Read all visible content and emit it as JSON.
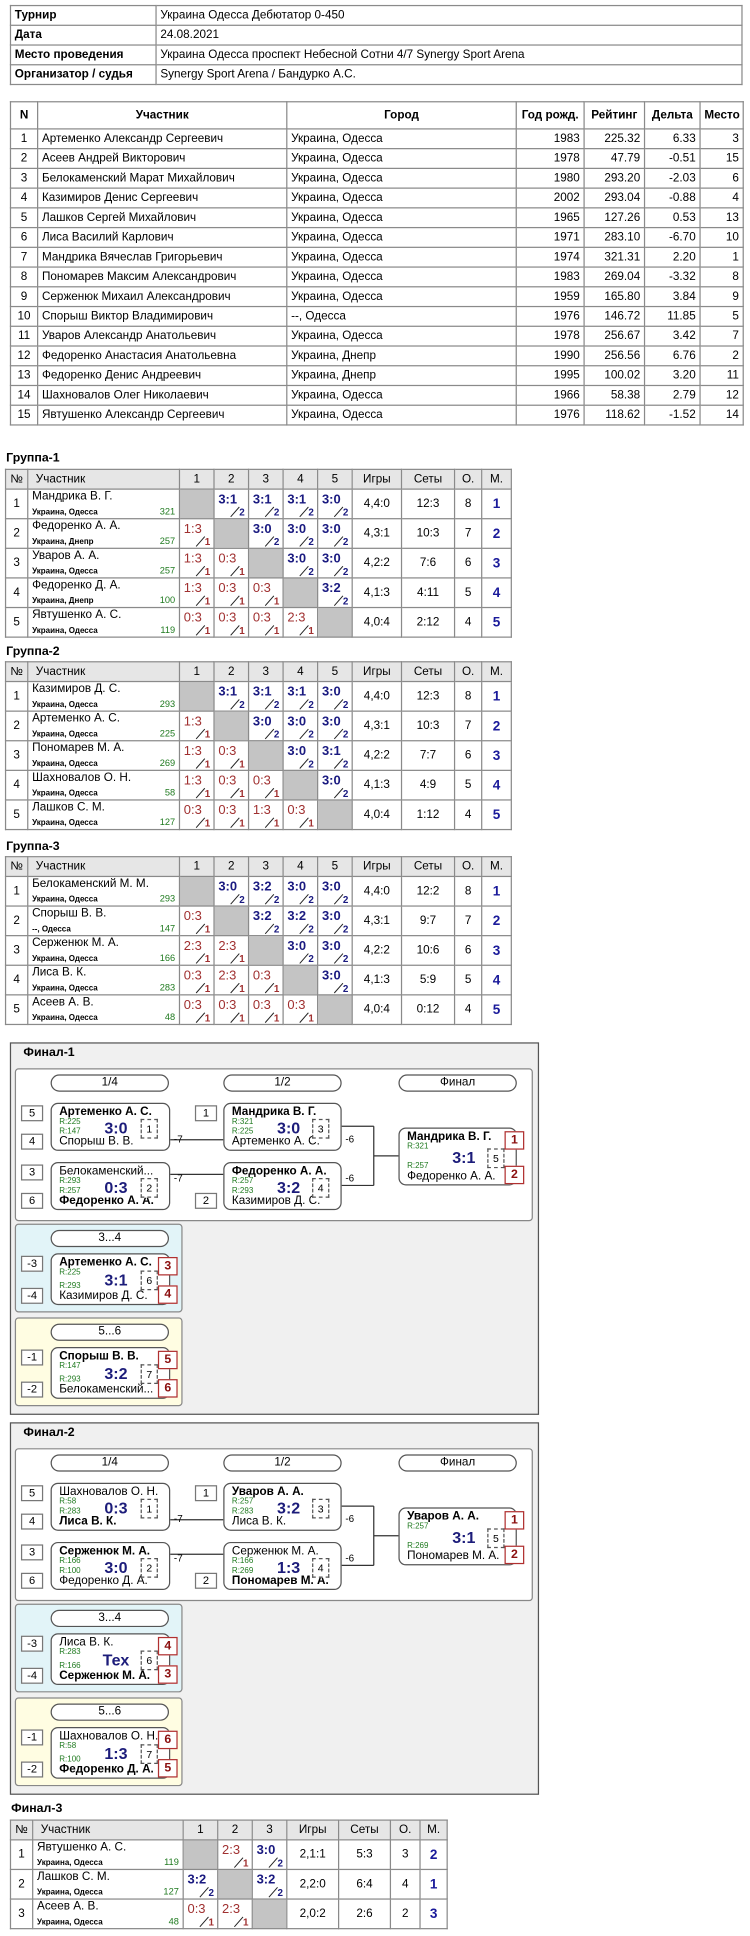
{
  "info": [
    [
      "Турнир",
      "Украина Одесса Дебютатор 0-450"
    ],
    [
      "Дата",
      "24.08.2021"
    ],
    [
      "Место проведения",
      "Украина Одесса проспект Небесной Сотни 4/7 Synergy Sport Arena"
    ],
    [
      "Организатор / судья",
      "Synergy Sport Arena / Бандурко А.С."
    ]
  ],
  "players": {
    "header": [
      "N",
      "Участник",
      "Город",
      "Год рожд.",
      "Рейтинг",
      "Дельта",
      "Место"
    ],
    "rows": [
      [
        "1",
        "Артеменко Александр Сергеевич",
        "Украина, Одесса",
        "1983",
        "225.32",
        "6.33",
        "3"
      ],
      [
        "2",
        "Асеев Андрей Викторович",
        "Украина, Одесса",
        "1978",
        "47.79",
        "-0.51",
        "15"
      ],
      [
        "3",
        "Белокаменский Марат Михайлович",
        "Украина, Одесса",
        "1980",
        "293.20",
        "-2.03",
        "6"
      ],
      [
        "4",
        "Казимиров Денис Сергеевич",
        "Украина, Одесса",
        "2002",
        "293.04",
        "-0.88",
        "4"
      ],
      [
        "5",
        "Лашков Сергей Михайлович",
        "Украина, Одесса",
        "1965",
        "127.26",
        "0.53",
        "13"
      ],
      [
        "6",
        "Лиса Василий Карлович",
        "Украина, Одесса",
        "1971",
        "283.10",
        "-6.70",
        "10"
      ],
      [
        "7",
        "Мандрика Вячеслав Григорьевич",
        "Украина, Одесса",
        "1974",
        "321.31",
        "2.20",
        "1"
      ],
      [
        "8",
        "Пономарев Максим Александрович",
        "Украина, Одесса",
        "1983",
        "269.04",
        "-3.32",
        "8"
      ],
      [
        "9",
        "Серженюк Михаил Александрович",
        "Украина, Одесса",
        "1959",
        "165.80",
        "3.84",
        "9"
      ],
      [
        "10",
        "Спорыш Виктор Владимирович",
        "--, Одесса",
        "1976",
        "146.72",
        "11.85",
        "5"
      ],
      [
        "11",
        "Уваров Александр Анатольевич",
        "Украина, Одесса",
        "1978",
        "256.67",
        "3.42",
        "7"
      ],
      [
        "12",
        "Федоренко Анастасия Анатольевна",
        "Украина, Днепр",
        "1990",
        "256.56",
        "6.76",
        "2"
      ],
      [
        "13",
        "Федоренко Денис Андреевич",
        "Украина, Днепр",
        "1995",
        "100.02",
        "3.20",
        "11"
      ],
      [
        "14",
        "Шахновалов Олег Николаевич",
        "Украина, Одесса",
        "1966",
        "58.38",
        "2.79",
        "12"
      ],
      [
        "15",
        "Явтушенко Александр Сергеевич",
        "Украина, Одесса",
        "1976",
        "118.62",
        "-1.52",
        "14"
      ]
    ]
  },
  "groups": [
    {
      "title": "Группа-1",
      "header": [
        "№",
        "Участник",
        "1",
        "2",
        "3",
        "4",
        "5",
        "Игры",
        "Сеты",
        "О.",
        "М."
      ],
      "rows": [
        {
          "n": "1",
          "name": "Мандрика В. Г.",
          "city": "Украина, Одесса",
          "rating": "321",
          "results": [
            null,
            {
              "s": "3:1",
              "p": "2"
            },
            {
              "s": "3:1",
              "p": "2"
            },
            {
              "s": "3:1",
              "p": "2"
            },
            {
              "s": "3:0",
              "p": "2"
            }
          ],
          "games": "4,4:0",
          "sets": "12:3",
          "points": "8",
          "place": "1"
        },
        {
          "n": "2",
          "name": "Федоренко А. А.",
          "city": "Украина, Днепр",
          "rating": "257",
          "results": [
            {
              "s": "1:3",
              "p": "1"
            },
            null,
            {
              "s": "3:0",
              "p": "2"
            },
            {
              "s": "3:0",
              "p": "2"
            },
            {
              "s": "3:0",
              "p": "2"
            }
          ],
          "games": "4,3:1",
          "sets": "10:3",
          "points": "7",
          "place": "2"
        },
        {
          "n": "3",
          "name": "Уваров А. А.",
          "city": "Украина, Одесса",
          "rating": "257",
          "results": [
            {
              "s": "1:3",
              "p": "1"
            },
            {
              "s": "0:3",
              "p": "1"
            },
            null,
            {
              "s": "3:0",
              "p": "2"
            },
            {
              "s": "3:0",
              "p": "2"
            }
          ],
          "games": "4,2:2",
          "sets": "7:6",
          "points": "6",
          "place": "3"
        },
        {
          "n": "4",
          "name": "Федоренко Д. А.",
          "city": "Украина, Днепр",
          "rating": "100",
          "results": [
            {
              "s": "1:3",
              "p": "1"
            },
            {
              "s": "0:3",
              "p": "1"
            },
            {
              "s": "0:3",
              "p": "1"
            },
            null,
            {
              "s": "3:2",
              "p": "2"
            }
          ],
          "games": "4,1:3",
          "sets": "4:11",
          "points": "5",
          "place": "4"
        },
        {
          "n": "5",
          "name": "Явтушенко А. С.",
          "city": "Украина, Одесса",
          "rating": "119",
          "results": [
            {
              "s": "0:3",
              "p": "1"
            },
            {
              "s": "0:3",
              "p": "1"
            },
            {
              "s": "0:3",
              "p": "1"
            },
            {
              "s": "2:3",
              "p": "1"
            },
            null
          ],
          "games": "4,0:4",
          "sets": "2:12",
          "points": "4",
          "place": "5"
        }
      ]
    },
    {
      "title": "Группа-2",
      "header": [
        "№",
        "Участник",
        "1",
        "2",
        "3",
        "4",
        "5",
        "Игры",
        "Сеты",
        "О.",
        "М."
      ],
      "rows": [
        {
          "n": "1",
          "name": "Казимиров Д. С.",
          "city": "Украина, Одесса",
          "rating": "293",
          "results": [
            null,
            {
              "s": "3:1",
              "p": "2"
            },
            {
              "s": "3:1",
              "p": "2"
            },
            {
              "s": "3:1",
              "p": "2"
            },
            {
              "s": "3:0",
              "p": "2"
            }
          ],
          "games": "4,4:0",
          "sets": "12:3",
          "points": "8",
          "place": "1"
        },
        {
          "n": "2",
          "name": "Артеменко А. С.",
          "city": "Украина, Одесса",
          "rating": "225",
          "results": [
            {
              "s": "1:3",
              "p": "1"
            },
            null,
            {
              "s": "3:0",
              "p": "2"
            },
            {
              "s": "3:0",
              "p": "2"
            },
            {
              "s": "3:0",
              "p": "2"
            }
          ],
          "games": "4,3:1",
          "sets": "10:3",
          "points": "7",
          "place": "2"
        },
        {
          "n": "3",
          "name": "Пономарев М. А.",
          "city": "Украина, Одесса",
          "rating": "269",
          "results": [
            {
              "s": "1:3",
              "p": "1"
            },
            {
              "s": "0:3",
              "p": "1"
            },
            null,
            {
              "s": "3:0",
              "p": "2"
            },
            {
              "s": "3:1",
              "p": "2"
            }
          ],
          "games": "4,2:2",
          "sets": "7:7",
          "points": "6",
          "place": "3"
        },
        {
          "n": "4",
          "name": "Шахновалов О. Н.",
          "city": "Украина, Одесса",
          "rating": "58",
          "results": [
            {
              "s": "1:3",
              "p": "1"
            },
            {
              "s": "0:3",
              "p": "1"
            },
            {
              "s": "0:3",
              "p": "1"
            },
            null,
            {
              "s": "3:0",
              "p": "2"
            }
          ],
          "games": "4,1:3",
          "sets": "4:9",
          "points": "5",
          "place": "4"
        },
        {
          "n": "5",
          "name": "Лашков С. М.",
          "city": "Украина, Одесса",
          "rating": "127",
          "results": [
            {
              "s": "0:3",
              "p": "1"
            },
            {
              "s": "0:3",
              "p": "1"
            },
            {
              "s": "1:3",
              "p": "1"
            },
            {
              "s": "0:3",
              "p": "1"
            },
            null
          ],
          "games": "4,0:4",
          "sets": "1:12",
          "points": "4",
          "place": "5"
        }
      ]
    },
    {
      "title": "Группа-3",
      "header": [
        "№",
        "Участник",
        "1",
        "2",
        "3",
        "4",
        "5",
        "Игры",
        "Сеты",
        "О.",
        "М."
      ],
      "rows": [
        {
          "n": "1",
          "name": "Белокаменский М. М.",
          "city": "Украина, Одесса",
          "rating": "293",
          "results": [
            null,
            {
              "s": "3:0",
              "p": "2"
            },
            {
              "s": "3:2",
              "p": "2"
            },
            {
              "s": "3:0",
              "p": "2"
            },
            {
              "s": "3:0",
              "p": "2"
            }
          ],
          "games": "4,4:0",
          "sets": "12:2",
          "points": "8",
          "place": "1"
        },
        {
          "n": "2",
          "name": "Спорыш В. В.",
          "city": "--, Одесса",
          "rating": "147",
          "results": [
            {
              "s": "0:3",
              "p": "1"
            },
            null,
            {
              "s": "3:2",
              "p": "2"
            },
            {
              "s": "3:2",
              "p": "2"
            },
            {
              "s": "3:0",
              "p": "2"
            }
          ],
          "games": "4,3:1",
          "sets": "9:7",
          "points": "7",
          "place": "2"
        },
        {
          "n": "3",
          "name": "Серженюк М. А.",
          "city": "Украина, Одесса",
          "rating": "166",
          "results": [
            {
              "s": "2:3",
              "p": "1"
            },
            {
              "s": "2:3",
              "p": "1"
            },
            null,
            {
              "s": "3:0",
              "p": "2"
            },
            {
              "s": "3:0",
              "p": "2"
            }
          ],
          "games": "4,2:2",
          "sets": "10:6",
          "points": "6",
          "place": "3"
        },
        {
          "n": "4",
          "name": "Лиса В. К.",
          "city": "Украина, Одесса",
          "rating": "283",
          "results": [
            {
              "s": "0:3",
              "p": "1"
            },
            {
              "s": "2:3",
              "p": "1"
            },
            {
              "s": "0:3",
              "p": "1"
            },
            null,
            {
              "s": "3:0",
              "p": "2"
            }
          ],
          "games": "4,1:3",
          "sets": "5:9",
          "points": "5",
          "place": "4"
        },
        {
          "n": "5",
          "name": "Асеев А. В.",
          "city": "Украина, Одесса",
          "rating": "48",
          "results": [
            {
              "s": "0:3",
              "p": "1"
            },
            {
              "s": "0:3",
              "p": "1"
            },
            {
              "s": "0:3",
              "p": "1"
            },
            {
              "s": "0:3",
              "p": "1"
            },
            null
          ],
          "games": "4,0:4",
          "sets": "0:12",
          "points": "4",
          "place": "5"
        }
      ]
    }
  ],
  "finals": [
    {
      "title": "Финал-1",
      "labels": [
        "1/4",
        "1/2",
        "Финал",
        "3...4",
        "5...6"
      ],
      "matches": [
        {
          "top": {
            "seed": "5",
            "name": "Артеменко А. С.",
            "r": "R:225",
            "win": true
          },
          "bottom": {
            "seed": "4",
            "name": "Спорыш В. В.",
            "r": "R:147",
            "win": false
          },
          "score": "3:0",
          "no": "1",
          "next": "-7"
        },
        {
          "top": {
            "seed": "3",
            "name": "Белокаменский...",
            "r": "R:293",
            "win": false
          },
          "bottom": {
            "seed": "6",
            "name": "Федоренко А. А.",
            "r": "R:257",
            "win": true
          },
          "score": "0:3",
          "no": "2",
          "next": "-7"
        },
        {
          "top": {
            "seed": "1",
            "name": "Мандрика В. Г.",
            "r": "R:321",
            "win": true
          },
          "bottom": {
            "name": "Артеменко А. С.",
            "r": "R:225",
            "win": false
          },
          "score": "3:0",
          "no": "3",
          "next": "-6"
        },
        {
          "top": {
            "name": "Федоренко А. А.",
            "r": "R:257",
            "win": true
          },
          "bottom": {
            "seed": "2",
            "name": "Казимиров Д. С.",
            "r": "R:293",
            "win": false
          },
          "score": "3:2",
          "no": "4",
          "next": "-6"
        },
        {
          "top": {
            "name": "Мандрика В. Г.",
            "r": "R:321",
            "win": true
          },
          "bottom": {
            "name": "Федоренко А. А.",
            "r": "R:257",
            "win": false
          },
          "score": "3:1",
          "no": "5",
          "places": [
            "1",
            "2"
          ]
        },
        {
          "top": {
            "seed": "-3",
            "name": "Артеменко А. С.",
            "r": "R:225",
            "win": true
          },
          "bottom": {
            "seed": "-4",
            "name": "Казимиров Д. С.",
            "r": "R:293",
            "win": false
          },
          "score": "3:1",
          "no": "6",
          "places": [
            "3",
            "4"
          ]
        },
        {
          "top": {
            "seed": "-1",
            "name": "Спорыш В. В.",
            "r": "R:147",
            "win": true
          },
          "bottom": {
            "seed": "-2",
            "name": "Белокаменский...",
            "r": "R:293",
            "win": false
          },
          "score": "3:2",
          "no": "7",
          "places": [
            "5",
            "6"
          ]
        }
      ]
    },
    {
      "title": "Финал-2",
      "labels": [
        "1/4",
        "1/2",
        "Финал",
        "3...4",
        "5...6"
      ],
      "matches": [
        {
          "top": {
            "seed": "5",
            "name": "Шахновалов О. Н.",
            "r": "R:58",
            "win": false
          },
          "bottom": {
            "seed": "4",
            "name": "Лиса В. К.",
            "r": "R:283",
            "win": true
          },
          "score": "0:3",
          "no": "1",
          "next": "-7"
        },
        {
          "top": {
            "seed": "3",
            "name": "Серженюк М. А.",
            "r": "R:166",
            "win": true
          },
          "bottom": {
            "seed": "6",
            "name": "Федоренко Д. А.",
            "r": "R:100",
            "win": false
          },
          "score": "3:0",
          "no": "2",
          "next": "-7"
        },
        {
          "top": {
            "seed": "1",
            "name": "Уваров А. А.",
            "r": "R:257",
            "win": true
          },
          "bottom": {
            "name": "Лиса В. К.",
            "r": "R:283",
            "win": false
          },
          "score": "3:2",
          "no": "3",
          "next": "-6"
        },
        {
          "top": {
            "name": "Серженюк М. А.",
            "r": "R:166",
            "win": false
          },
          "bottom": {
            "seed": "2",
            "name": "Пономарев М. А.",
            "r": "R:269",
            "win": true
          },
          "score": "1:3",
          "no": "4",
          "next": "-6"
        },
        {
          "top": {
            "name": "Уваров А. А.",
            "r": "R:257",
            "win": true
          },
          "bottom": {
            "name": "Пономарев М. А.",
            "r": "R:269",
            "win": false
          },
          "score": "3:1",
          "no": "5",
          "places": [
            "1",
            "2"
          ]
        },
        {
          "top": {
            "seed": "-3",
            "name": "Лиса В. К.",
            "r": "R:283",
            "win": false
          },
          "bottom": {
            "seed": "-4",
            "name": "Серженюк М. А.",
            "r": "R:166",
            "win": true
          },
          "score": "Тех",
          "no": "6",
          "places": [
            "4",
            "3"
          ]
        },
        {
          "top": {
            "seed": "-1",
            "name": "Шахновалов О. Н.",
            "r": "R:58",
            "win": false
          },
          "bottom": {
            "seed": "-2",
            "name": "Федоренко Д. А.",
            "r": "R:100",
            "win": true
          },
          "score": "1:3",
          "no": "7",
          "places": [
            "6",
            "5"
          ]
        }
      ]
    }
  ],
  "final3": {
    "title": "Финал-3",
    "header": [
      "№",
      "Участник",
      "1",
      "2",
      "3",
      "Игры",
      "Сеты",
      "О.",
      "М."
    ],
    "rows": [
      {
        "n": "1",
        "name": "Явтушенко А. С.",
        "city": "Украина, Одесса",
        "rating": "119",
        "results": [
          null,
          {
            "s": "2:3",
            "p": "1"
          },
          {
            "s": "3:0",
            "p": "2"
          }
        ],
        "games": "2,1:1",
        "sets": "5:3",
        "points": "3",
        "place": "2"
      },
      {
        "n": "2",
        "name": "Лашков С. М.",
        "city": "Украина, Одесса",
        "rating": "127",
        "results": [
          {
            "s": "3:2",
            "p": "2"
          },
          null,
          {
            "s": "3:2",
            "p": "2"
          }
        ],
        "games": "2,2:0",
        "sets": "6:4",
        "points": "4",
        "place": "1"
      },
      {
        "n": "3",
        "name": "Асеев А. В.",
        "city": "Украина, Одесса",
        "rating": "48",
        "results": [
          {
            "s": "0:3",
            "p": "1"
          },
          {
            "s": "2:3",
            "p": "1"
          },
          null
        ],
        "games": "2,0:2",
        "sets": "2:6",
        "points": "2",
        "place": "3"
      }
    ]
  }
}
